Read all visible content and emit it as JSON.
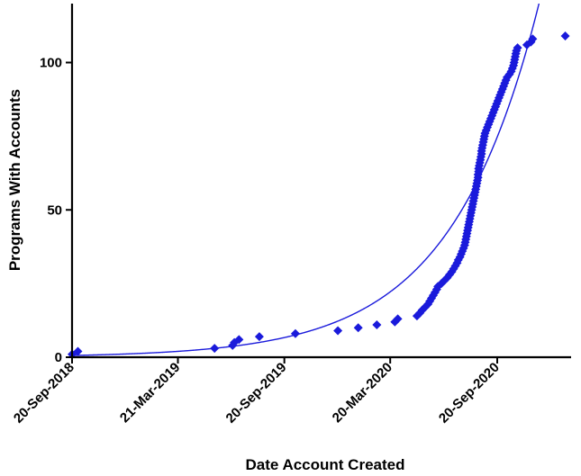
{
  "chart_data": {
    "type": "scatter",
    "xlabel": "Date Account Created",
    "ylabel": "Programs With Accounts",
    "x_ticks": [
      "2018-09-20",
      "2019-03-21",
      "2019-09-20",
      "2020-03-20",
      "2020-09-20"
    ],
    "x_tick_labels": [
      "20-Sep-2018",
      "21-Mar-2019",
      "20-Sep-2019",
      "20-Mar-2020",
      "20-Sep-2020"
    ],
    "xlim": [
      "2018-09-20",
      "2021-01-25"
    ],
    "y_ticks": [
      0,
      50,
      100
    ],
    "ylim": [
      0,
      120
    ],
    "marker_color": "#1a1adb",
    "fit_color": "#1a1adb",
    "grid": false,
    "legend": "none",
    "series": [
      {
        "points": [
          [
            "2018-09-20",
            1
          ],
          [
            "2018-09-30",
            2
          ],
          [
            "2019-05-23",
            3
          ],
          [
            "2019-06-23",
            4
          ],
          [
            "2019-06-26",
            5
          ],
          [
            "2019-07-04",
            6
          ],
          [
            "2019-08-08",
            7
          ],
          [
            "2019-10-09",
            8
          ],
          [
            "2019-12-21",
            9
          ],
          [
            "2020-01-25",
            10
          ],
          [
            "2020-02-26",
            11
          ],
          [
            "2020-03-28",
            12
          ],
          [
            "2020-04-02",
            13
          ],
          [
            "2020-05-05",
            14
          ],
          [
            "2020-05-10",
            15
          ],
          [
            "2020-05-14",
            16
          ],
          [
            "2020-05-19",
            17
          ],
          [
            "2020-05-24",
            18
          ],
          [
            "2020-05-27",
            19
          ],
          [
            "2020-05-30",
            20
          ],
          [
            "2020-06-02",
            21
          ],
          [
            "2020-06-05",
            22
          ],
          [
            "2020-06-08",
            23
          ],
          [
            "2020-06-10",
            24
          ],
          [
            "2020-06-16",
            25
          ],
          [
            "2020-06-21",
            26
          ],
          [
            "2020-06-26",
            27
          ],
          [
            "2020-06-30",
            28
          ],
          [
            "2020-07-04",
            29
          ],
          [
            "2020-07-07",
            30
          ],
          [
            "2020-07-10",
            31
          ],
          [
            "2020-07-13",
            32
          ],
          [
            "2020-07-15",
            33
          ],
          [
            "2020-07-18",
            34
          ],
          [
            "2020-07-20",
            35
          ],
          [
            "2020-07-22",
            36
          ],
          [
            "2020-07-24",
            37
          ],
          [
            "2020-07-26",
            38
          ],
          [
            "2020-07-27",
            39
          ],
          [
            "2020-07-28",
            40
          ],
          [
            "2020-07-29",
            41
          ],
          [
            "2020-07-30",
            42
          ],
          [
            "2020-07-31",
            43
          ],
          [
            "2020-08-01",
            44
          ],
          [
            "2020-08-02",
            45
          ],
          [
            "2020-08-03",
            46
          ],
          [
            "2020-08-04",
            47
          ],
          [
            "2020-08-05",
            48
          ],
          [
            "2020-08-06",
            49
          ],
          [
            "2020-08-07",
            50
          ],
          [
            "2020-08-08",
            51
          ],
          [
            "2020-08-09",
            52
          ],
          [
            "2020-08-10",
            53
          ],
          [
            "2020-08-11",
            54
          ],
          [
            "2020-08-12",
            55
          ],
          [
            "2020-08-13",
            56
          ],
          [
            "2020-08-14",
            57
          ],
          [
            "2020-08-15",
            58
          ],
          [
            "2020-08-16",
            59
          ],
          [
            "2020-08-17",
            60
          ],
          [
            "2020-08-18",
            61
          ],
          [
            "2020-08-18",
            62
          ],
          [
            "2020-08-19",
            63
          ],
          [
            "2020-08-19",
            64
          ],
          [
            "2020-08-20",
            65
          ],
          [
            "2020-08-21",
            66
          ],
          [
            "2020-08-22",
            67
          ],
          [
            "2020-08-23",
            68
          ],
          [
            "2020-08-24",
            69
          ],
          [
            "2020-08-24",
            70
          ],
          [
            "2020-08-25",
            71
          ],
          [
            "2020-08-26",
            72
          ],
          [
            "2020-08-27",
            73
          ],
          [
            "2020-08-28",
            74
          ],
          [
            "2020-08-29",
            75
          ],
          [
            "2020-08-30",
            76
          ],
          [
            "2020-09-01",
            77
          ],
          [
            "2020-09-03",
            78
          ],
          [
            "2020-09-05",
            79
          ],
          [
            "2020-09-07",
            80
          ],
          [
            "2020-09-09",
            81
          ],
          [
            "2020-09-11",
            82
          ],
          [
            "2020-09-13",
            83
          ],
          [
            "2020-09-15",
            84
          ],
          [
            "2020-09-17",
            85
          ],
          [
            "2020-09-19",
            86
          ],
          [
            "2020-09-21",
            87
          ],
          [
            "2020-09-23",
            88
          ],
          [
            "2020-09-25",
            89
          ],
          [
            "2020-09-27",
            90
          ],
          [
            "2020-09-29",
            91
          ],
          [
            "2020-10-01",
            92
          ],
          [
            "2020-10-03",
            93
          ],
          [
            "2020-10-05",
            94
          ],
          [
            "2020-10-07",
            95
          ],
          [
            "2020-10-11",
            96
          ],
          [
            "2020-10-14",
            97
          ],
          [
            "2020-10-16",
            98
          ],
          [
            "2020-10-18",
            99
          ],
          [
            "2020-10-19",
            100
          ],
          [
            "2020-10-20",
            101
          ],
          [
            "2020-10-21",
            102
          ],
          [
            "2020-10-22",
            103
          ],
          [
            "2020-10-23",
            104
          ],
          [
            "2020-10-25",
            105
          ],
          [
            "2020-11-10",
            106
          ],
          [
            "2020-11-17",
            107
          ],
          [
            "2020-11-20",
            108
          ],
          [
            "2021-01-15",
            109
          ]
        ]
      }
    ],
    "fit": {
      "type": "exponential",
      "y_at_start": 0.6,
      "growth_per_day": 0.0066
    }
  }
}
